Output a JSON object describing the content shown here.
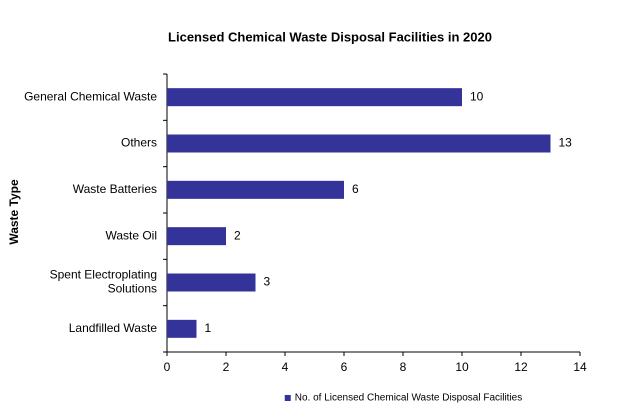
{
  "chart_data": {
    "type": "hbar",
    "title": "Licensed Chemical Waste Disposal Facilities in 2020",
    "y_label": "Waste Type",
    "categories": [
      "General Chemical Waste",
      "Others",
      "Waste Batteries",
      "Waste Oil",
      "Spent Electroplating Solutions",
      "Landfilled Waste"
    ],
    "series": [
      {
        "name": "No. of Licensed Chemical Waste Disposal Facilities",
        "color": "#333399",
        "values": [
          10,
          13,
          6,
          2,
          3,
          1
        ]
      }
    ],
    "xlim": [
      0,
      14
    ],
    "xticks": [
      0,
      2,
      4,
      6,
      8,
      10,
      12,
      14
    ],
    "grid": false,
    "legend": "bottom"
  }
}
